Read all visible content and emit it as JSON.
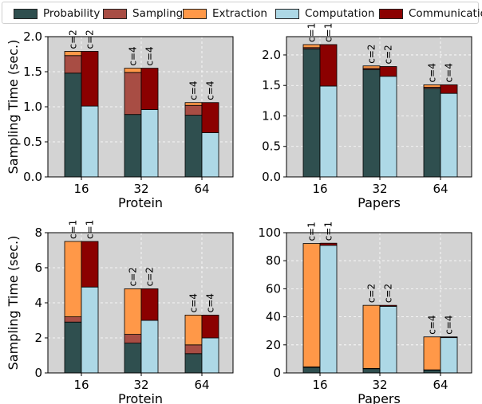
{
  "legend": {
    "items": [
      {
        "label": "Probability",
        "color": "#2f4f4f"
      },
      {
        "label": "Sampling",
        "color": "#a84d44"
      },
      {
        "label": "Extraction",
        "color": "#ff9848"
      },
      {
        "label": "Computation",
        "color": "#add8e6"
      },
      {
        "label": "Communication",
        "color": "#8b0000"
      }
    ]
  },
  "chart_data": [
    {
      "type": "bar",
      "subtype": "stacked-grouped",
      "xlabel": "Protein",
      "ylabel": "Sampling Time (sec.)",
      "categories": [
        "16",
        "32",
        "64"
      ],
      "ylim": [
        0,
        2.0
      ],
      "yticks": [
        0.0,
        0.5,
        1.0,
        1.5,
        2.0
      ],
      "ytick_labels": [
        "0.0",
        "0.5",
        "1.0",
        "1.5",
        "2.0"
      ],
      "grid": true,
      "bar_labels": [
        [
          "c=2",
          "c=2"
        ],
        [
          "c=4",
          "c=4"
        ],
        [
          "c=4",
          "c=4"
        ]
      ],
      "left_bars": [
        {
          "Probability": 1.48,
          "Sampling": 0.25,
          "Extraction": 0.06
        },
        {
          "Probability": 0.89,
          "Sampling": 0.6,
          "Extraction": 0.06
        },
        {
          "Probability": 0.88,
          "Sampling": 0.14,
          "Extraction": 0.04
        }
      ],
      "right_bars": [
        {
          "Computation": 1.01,
          "Communication": 0.78
        },
        {
          "Computation": 0.96,
          "Communication": 0.59
        },
        {
          "Computation": 0.63,
          "Communication": 0.43
        }
      ]
    },
    {
      "type": "bar",
      "subtype": "stacked-grouped",
      "xlabel": "Papers",
      "ylabel": "",
      "categories": [
        "16",
        "32",
        "64"
      ],
      "ylim": [
        0,
        2.3
      ],
      "yticks": [
        0.0,
        0.5,
        1.0,
        1.5,
        2.0
      ],
      "ytick_labels": [
        "0.0",
        "0.5",
        "1.0",
        "1.5",
        "2.0"
      ],
      "grid": true,
      "bar_labels": [
        [
          "c=1",
          "c=1"
        ],
        [
          "c=2",
          "c=2"
        ],
        [
          "c=4",
          "c=4"
        ]
      ],
      "left_bars": [
        {
          "Probability": 2.1,
          "Sampling": 0.02,
          "Extraction": 0.05
        },
        {
          "Probability": 1.76,
          "Sampling": 0.02,
          "Extraction": 0.04
        },
        {
          "Probability": 1.45,
          "Sampling": 0.02,
          "Extraction": 0.04
        }
      ],
      "right_bars": [
        {
          "Computation": 1.49,
          "Communication": 0.68
        },
        {
          "Computation": 1.65,
          "Communication": 0.16
        },
        {
          "Computation": 1.37,
          "Communication": 0.14
        }
      ]
    },
    {
      "type": "bar",
      "subtype": "stacked-grouped",
      "xlabel": "Protein",
      "ylabel": "Sampling Time (sec.)",
      "categories": [
        "16",
        "32",
        "64"
      ],
      "ylim": [
        0,
        8
      ],
      "yticks": [
        0,
        2,
        4,
        6,
        8
      ],
      "ytick_labels": [
        "0",
        "2",
        "4",
        "6",
        "8"
      ],
      "grid": true,
      "bar_labels": [
        [
          "c=1",
          "c=1"
        ],
        [
          "c=2",
          "c=2"
        ],
        [
          "c=4",
          "c=4"
        ]
      ],
      "left_bars": [
        {
          "Probability": 2.9,
          "Sampling": 0.3,
          "Extraction": 4.3
        },
        {
          "Probability": 1.7,
          "Sampling": 0.5,
          "Extraction": 2.6
        },
        {
          "Probability": 1.1,
          "Sampling": 0.5,
          "Extraction": 1.7
        }
      ],
      "right_bars": [
        {
          "Computation": 4.9,
          "Communication": 2.6
        },
        {
          "Computation": 3.0,
          "Communication": 1.8
        },
        {
          "Computation": 2.0,
          "Communication": 1.3
        }
      ]
    },
    {
      "type": "bar",
      "subtype": "stacked-grouped",
      "xlabel": "Papers",
      "ylabel": "",
      "categories": [
        "16",
        "32",
        "64"
      ],
      "ylim": [
        0,
        100
      ],
      "yticks": [
        0,
        20,
        40,
        60,
        80,
        100
      ],
      "ytick_labels": [
        "0",
        "20",
        "40",
        "60",
        "80",
        "100"
      ],
      "grid": true,
      "bar_labels": [
        [
          "c=1",
          "c=1"
        ],
        [
          "c=2",
          "c=2"
        ],
        [
          "c=4",
          "c=4"
        ]
      ],
      "left_bars": [
        {
          "Probability": 4,
          "Sampling": 0.3,
          "Extraction": 88
        },
        {
          "Probability": 3,
          "Sampling": 0.2,
          "Extraction": 45
        },
        {
          "Probability": 2,
          "Sampling": 0.2,
          "Extraction": 23.5
        }
      ],
      "right_bars": [
        {
          "Computation": 91,
          "Communication": 1.5
        },
        {
          "Computation": 47.5,
          "Communication": 0.7
        },
        {
          "Computation": 25.2,
          "Communication": 0.5
        }
      ]
    }
  ]
}
